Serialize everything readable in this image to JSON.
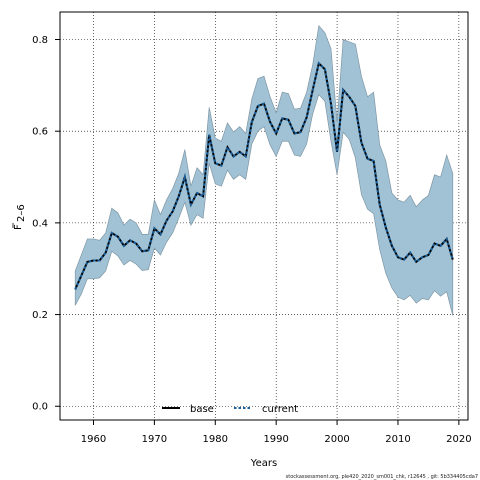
{
  "chart_data": {
    "type": "line",
    "xlabel": "Years",
    "ylabel_main": "F",
    "ylabel_sub": "2–6",
    "xlim": [
      1954.5,
      2021.5
    ],
    "ylim": [
      -0.03,
      0.86
    ],
    "xticks": [
      1960,
      1970,
      1980,
      1990,
      2000,
      2010,
      2020
    ],
    "yticks": [
      0.0,
      0.2,
      0.4,
      0.6,
      0.8
    ],
    "ytick_labels": [
      "0.0",
      "0.2",
      "0.4",
      "0.6",
      "0.8"
    ],
    "grid": true,
    "legend_placement": "bottom-center",
    "colors": {
      "band_fill": "#a1c2d5",
      "band_edge": "#7f97a5",
      "base": "#000000",
      "current": "#1a5f9a"
    },
    "series": [
      {
        "name": "base",
        "style": "solid",
        "x": [
          1957,
          1958,
          1959,
          1960,
          1961,
          1962,
          1963,
          1964,
          1965,
          1966,
          1967,
          1968,
          1969,
          1970,
          1971,
          1972,
          1973,
          1974,
          1975,
          1976,
          1977,
          1978,
          1979,
          1980,
          1981,
          1982,
          1983,
          1984,
          1985,
          1986,
          1987,
          1988,
          1989,
          1990,
          1991,
          1992,
          1993,
          1994,
          1995,
          1996,
          1997,
          1998,
          1999,
          2000,
          2001,
          2002,
          2003,
          2004,
          2005,
          2006,
          2007,
          2008,
          2009,
          2010,
          2011,
          2012,
          2013,
          2014,
          2015,
          2016,
          2017,
          2018,
          2019
        ],
        "y": [
          0.255,
          0.285,
          0.315,
          0.318,
          0.318,
          0.335,
          0.378,
          0.37,
          0.35,
          0.362,
          0.355,
          0.338,
          0.34,
          0.388,
          0.375,
          0.405,
          0.425,
          0.458,
          0.5,
          0.44,
          0.465,
          0.458,
          0.592,
          0.53,
          0.525,
          0.565,
          0.545,
          0.555,
          0.545,
          0.62,
          0.655,
          0.66,
          0.62,
          0.595,
          0.628,
          0.625,
          0.595,
          0.598,
          0.63,
          0.69,
          0.748,
          0.735,
          0.66,
          0.555,
          0.69,
          0.675,
          0.655,
          0.575,
          0.54,
          0.535,
          0.44,
          0.39,
          0.35,
          0.325,
          0.32,
          0.335,
          0.315,
          0.325,
          0.33,
          0.355,
          0.35,
          0.365,
          0.32
        ]
      },
      {
        "name": "current",
        "style": "dotted",
        "x": [
          1957,
          1958,
          1959,
          1960,
          1961,
          1962,
          1963,
          1964,
          1965,
          1966,
          1967,
          1968,
          1969,
          1970,
          1971,
          1972,
          1973,
          1974,
          1975,
          1976,
          1977,
          1978,
          1979,
          1980,
          1981,
          1982,
          1983,
          1984,
          1985,
          1986,
          1987,
          1988,
          1989,
          1990,
          1991,
          1992,
          1993,
          1994,
          1995,
          1996,
          1997,
          1998,
          1999,
          2000,
          2001,
          2002,
          2003,
          2004,
          2005,
          2006,
          2007,
          2008,
          2009,
          2010,
          2011,
          2012,
          2013,
          2014,
          2015,
          2016,
          2017,
          2018,
          2019
        ],
        "y": [
          0.255,
          0.285,
          0.315,
          0.318,
          0.318,
          0.335,
          0.378,
          0.37,
          0.35,
          0.362,
          0.355,
          0.338,
          0.34,
          0.388,
          0.375,
          0.405,
          0.425,
          0.458,
          0.5,
          0.44,
          0.465,
          0.458,
          0.592,
          0.53,
          0.525,
          0.565,
          0.545,
          0.555,
          0.545,
          0.62,
          0.655,
          0.66,
          0.62,
          0.595,
          0.628,
          0.625,
          0.595,
          0.598,
          0.63,
          0.69,
          0.748,
          0.735,
          0.66,
          0.555,
          0.69,
          0.675,
          0.655,
          0.575,
          0.54,
          0.535,
          0.44,
          0.39,
          0.35,
          0.325,
          0.32,
          0.335,
          0.315,
          0.325,
          0.33,
          0.355,
          0.35,
          0.365,
          0.32
        ]
      }
    ],
    "band": {
      "x": [
        1957,
        1958,
        1959,
        1960,
        1961,
        1962,
        1963,
        1964,
        1965,
        1966,
        1967,
        1968,
        1969,
        1970,
        1971,
        1972,
        1973,
        1974,
        1975,
        1976,
        1977,
        1978,
        1979,
        1980,
        1981,
        1982,
        1983,
        1984,
        1985,
        1986,
        1987,
        1988,
        1989,
        1990,
        1991,
        1992,
        1993,
        1994,
        1995,
        1996,
        1997,
        1998,
        1999,
        2000,
        2001,
        2002,
        2003,
        2004,
        2005,
        2006,
        2007,
        2008,
        2009,
        2010,
        2011,
        2012,
        2013,
        2014,
        2015,
        2016,
        2017,
        2018,
        2019
      ],
      "upper": [
        0.295,
        0.33,
        0.365,
        0.365,
        0.362,
        0.378,
        0.432,
        0.422,
        0.395,
        0.408,
        0.4,
        0.375,
        0.375,
        0.45,
        0.418,
        0.45,
        0.475,
        0.508,
        0.56,
        0.48,
        0.52,
        0.505,
        0.652,
        0.585,
        0.578,
        0.618,
        0.598,
        0.61,
        0.595,
        0.67,
        0.715,
        0.72,
        0.675,
        0.64,
        0.685,
        0.682,
        0.648,
        0.65,
        0.685,
        0.745,
        0.83,
        0.815,
        0.78,
        0.62,
        0.8,
        0.795,
        0.79,
        0.72,
        0.675,
        0.685,
        0.57,
        0.535,
        0.465,
        0.45,
        0.445,
        0.46,
        0.435,
        0.45,
        0.46,
        0.505,
        0.5,
        0.548,
        0.508
      ],
      "lower": [
        0.22,
        0.245,
        0.278,
        0.278,
        0.28,
        0.295,
        0.338,
        0.328,
        0.308,
        0.318,
        0.31,
        0.296,
        0.298,
        0.345,
        0.33,
        0.358,
        0.378,
        0.41,
        0.445,
        0.395,
        0.418,
        0.41,
        0.53,
        0.485,
        0.48,
        0.515,
        0.495,
        0.505,
        0.495,
        0.572,
        0.6,
        0.61,
        0.57,
        0.545,
        0.578,
        0.578,
        0.548,
        0.545,
        0.572,
        0.638,
        0.68,
        0.665,
        0.578,
        0.505,
        0.598,
        0.582,
        0.542,
        0.462,
        0.43,
        0.42,
        0.342,
        0.29,
        0.258,
        0.238,
        0.232,
        0.242,
        0.225,
        0.235,
        0.232,
        0.252,
        0.24,
        0.25,
        0.198
      ]
    }
  },
  "legend": [
    {
      "label": "base"
    },
    {
      "label": "current"
    }
  ],
  "footer": "stockassessment.org, ple420_2020_sm001_chk, r12645 , git: 5b334405cda7"
}
